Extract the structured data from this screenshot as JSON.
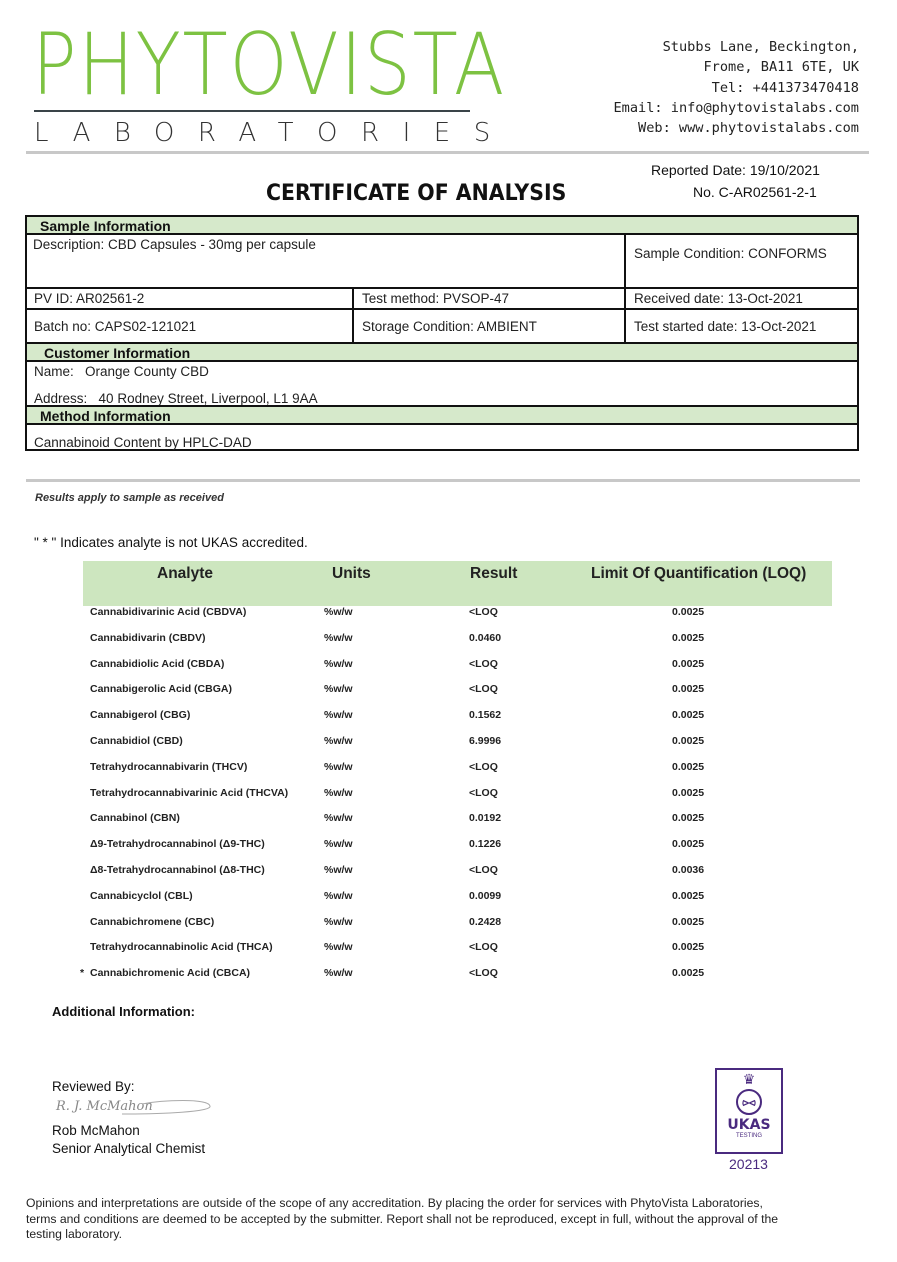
{
  "logo": {
    "name": "PHYTOVISTA",
    "sub": "LABORATORIES"
  },
  "address": {
    "line1": "Stubbs Lane, Beckington,",
    "line2": "Frome, BA11 6TE, UK",
    "tel": "Tel: +441373470418",
    "email": "Email: info@phytovistalabs.com",
    "web": "Web: www.phytovistalabs.com"
  },
  "report": {
    "reported_date": "Reported Date: 19/10/2021",
    "number": "No. C-AR02561-2-1",
    "title": "CERTIFICATE OF ANALYSIS"
  },
  "sample": {
    "header": "Sample Information",
    "description": "Description: CBD Capsules - 30mg per capsule",
    "condition": "Sample Condition: CONFORMS",
    "pv_id": "PV ID: AR02561-2",
    "test_method": "Test method: PVSOP-47",
    "received": "Received date: 13-Oct-2021",
    "batch": "Batch no: CAPS02-121021",
    "storage": "Storage Condition: AMBIENT",
    "test_started": "Test started date: 13-Oct-2021"
  },
  "customer": {
    "header": "Customer Information",
    "name_label": "Name:",
    "name": "Orange County CBD",
    "address_label": "Address:",
    "address": "40 Rodney Street, Liverpool, L1 9AA"
  },
  "method": {
    "header": "Method Information",
    "value": "Cannabinoid Content by HPLC-DAD"
  },
  "results_note": "Results apply to sample as received",
  "ukas_note": "\" * \" Indicates analyte is not UKAS accredited.",
  "table": {
    "headers": [
      "Analyte",
      "Units",
      "Result",
      "Limit Of Quantification (LOQ)"
    ],
    "rows": [
      {
        "mark": "",
        "analyte": "Cannabidivarinic Acid (CBDVA)",
        "units": "%w/w",
        "result": "<LOQ",
        "loq": "0.0025"
      },
      {
        "mark": "",
        "analyte": "Cannabidivarin (CBDV)",
        "units": "%w/w",
        "result": "0.0460",
        "loq": "0.0025"
      },
      {
        "mark": "",
        "analyte": "Cannabidiolic Acid (CBDA)",
        "units": "%w/w",
        "result": "<LOQ",
        "loq": "0.0025"
      },
      {
        "mark": "",
        "analyte": "Cannabigerolic Acid (CBGA)",
        "units": "%w/w",
        "result": "<LOQ",
        "loq": "0.0025"
      },
      {
        "mark": "",
        "analyte": "Cannabigerol (CBG)",
        "units": "%w/w",
        "result": "0.1562",
        "loq": "0.0025"
      },
      {
        "mark": "",
        "analyte": "Cannabidiol (CBD)",
        "units": "%w/w",
        "result": "6.9996",
        "loq": "0.0025"
      },
      {
        "mark": "",
        "analyte": "Tetrahydrocannabivarin (THCV)",
        "units": "%w/w",
        "result": "<LOQ",
        "loq": "0.0025"
      },
      {
        "mark": "",
        "analyte": "Tetrahydrocannabivarinic Acid (THCVA)",
        "units": "%w/w",
        "result": "<LOQ",
        "loq": "0.0025"
      },
      {
        "mark": "",
        "analyte": "Cannabinol (CBN)",
        "units": "%w/w",
        "result": "0.0192",
        "loq": "0.0025"
      },
      {
        "mark": "",
        "analyte": "Δ9-Tetrahydrocannabinol (Δ9-THC)",
        "units": "%w/w",
        "result": "0.1226",
        "loq": "0.0025"
      },
      {
        "mark": "",
        "analyte": "Δ8-Tetrahydrocannabinol (Δ8-THC)",
        "units": "%w/w",
        "result": "<LOQ",
        "loq": "0.0036"
      },
      {
        "mark": "",
        "analyte": "Cannabicyclol (CBL)",
        "units": "%w/w",
        "result": "0.0099",
        "loq": "0.0025"
      },
      {
        "mark": "",
        "analyte": "Cannabichromene (CBC)",
        "units": "%w/w",
        "result": "0.2428",
        "loq": "0.0025"
      },
      {
        "mark": "",
        "analyte": "Tetrahydrocannabinolic Acid (THCA)",
        "units": "%w/w",
        "result": "<LOQ",
        "loq": "0.0025"
      },
      {
        "mark": "*",
        "analyte": "Cannabichromenic Acid (CBCA)",
        "units": "%w/w",
        "result": "<LOQ",
        "loq": "0.0025"
      }
    ]
  },
  "additional": "Additional Information:",
  "review": {
    "label": "Reviewed By:",
    "signature": "R. J. McMahon",
    "name": "Rob McMahon",
    "role": "Senior Analytical Chemist"
  },
  "ukas": {
    "text": "UKAS",
    "sub": "TESTING",
    "number": "20213"
  },
  "disclaimer": "Opinions and interpretations are outside of the scope of any accreditation. By placing the order for services with PhytoVista Laboratories, terms and conditions are deemed to be accepted by the submitter. Report shall not be reproduced, except in full, without the approval of the testing laboratory.",
  "colors": {
    "brand_green": "#7dc242",
    "section_green": "#d6e9cb",
    "ukas_purple": "#4a2a7f"
  }
}
